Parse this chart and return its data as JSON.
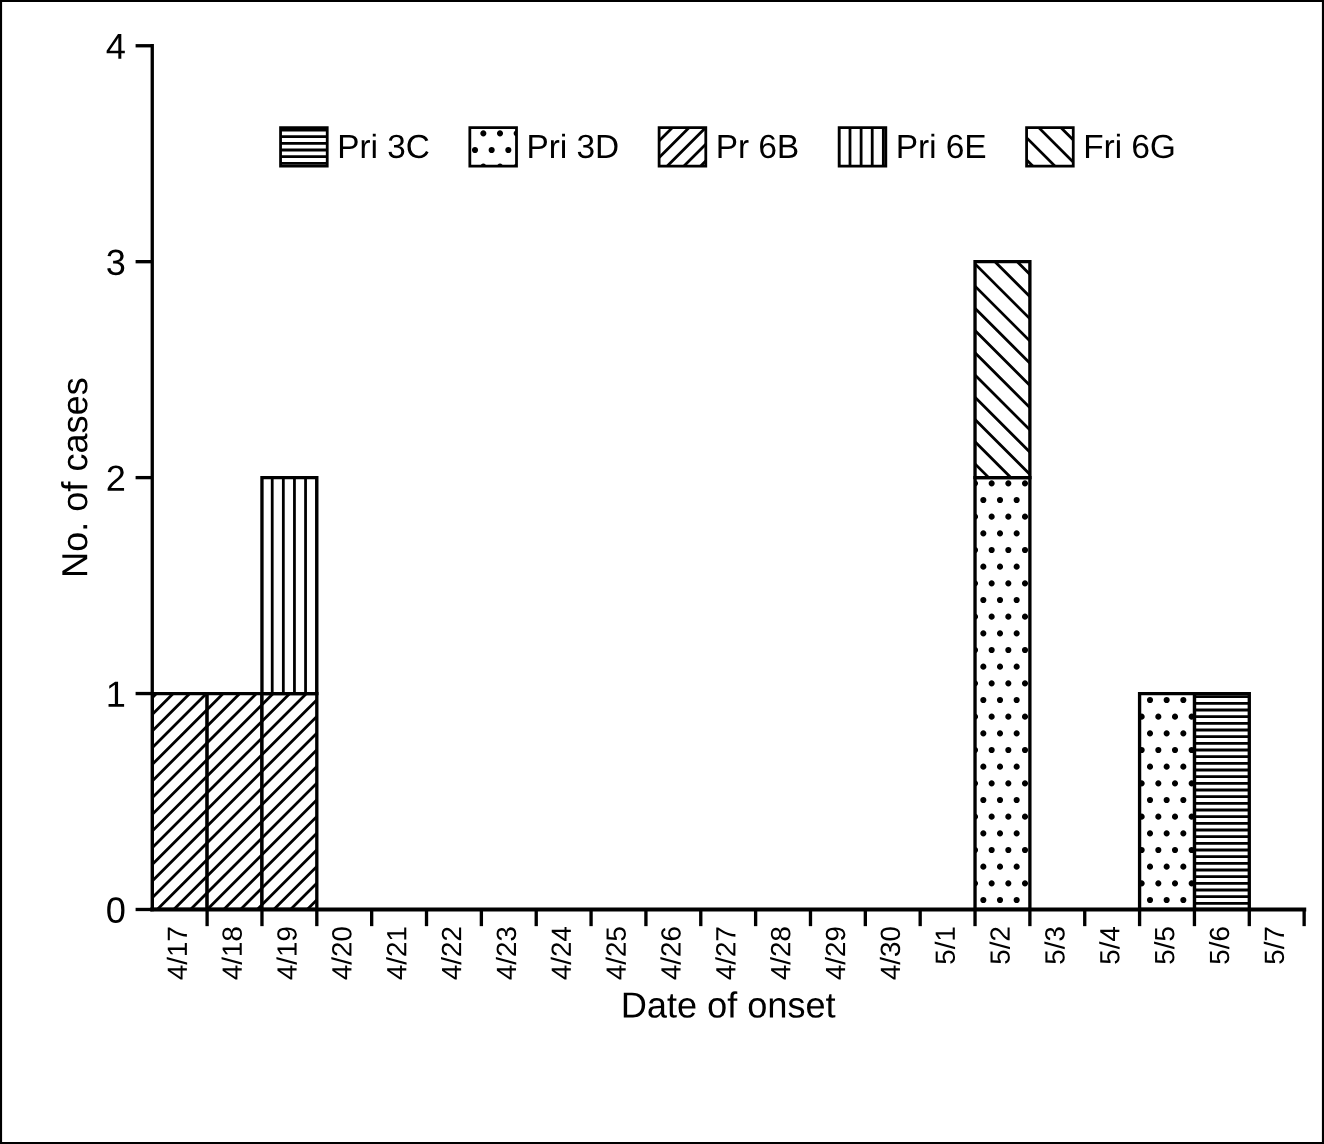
{
  "chart_data": {
    "type": "bar",
    "stacked": true,
    "xlabel": "Date of onset",
    "ylabel": "No. of cases",
    "categories": [
      "4/17",
      "4/18",
      "4/19",
      "4/20",
      "4/21",
      "4/22",
      "4/23",
      "4/24",
      "4/25",
      "4/26",
      "4/27",
      "4/28",
      "4/29",
      "4/30",
      "5/1",
      "5/2",
      "5/3",
      "5/4",
      "5/5",
      "5/6",
      "5/7"
    ],
    "series": [
      {
        "name": "Pri 3C",
        "color": "#000000",
        "values": [
          0,
          0,
          0,
          0,
          0,
          0,
          0,
          0,
          0,
          0,
          0,
          0,
          0,
          0,
          0,
          0,
          0,
          0,
          0,
          1,
          0
        ]
      },
      {
        "name": "Pri 3D",
        "color": "#000000",
        "values": [
          0,
          0,
          0,
          0,
          0,
          0,
          0,
          0,
          0,
          0,
          0,
          0,
          0,
          0,
          0,
          2,
          0,
          0,
          1,
          0,
          0
        ]
      },
      {
        "name": "Pr 6B",
        "color": "#000000",
        "values": [
          1,
          1,
          1,
          0,
          0,
          0,
          0,
          0,
          0,
          0,
          0,
          0,
          0,
          0,
          0,
          0,
          0,
          0,
          0,
          0,
          0
        ]
      },
      {
        "name": "Pri 6E",
        "color": "#000000",
        "values": [
          0,
          0,
          1,
          0,
          0,
          0,
          0,
          0,
          0,
          0,
          0,
          0,
          0,
          0,
          0,
          0,
          0,
          0,
          0,
          0,
          0
        ]
      },
      {
        "name": "Fri 6G",
        "color": "#000000",
        "values": [
          0,
          0,
          0,
          0,
          0,
          0,
          0,
          0,
          0,
          0,
          0,
          0,
          0,
          0,
          0,
          1,
          0,
          0,
          0,
          0,
          0
        ]
      }
    ],
    "ylim": [
      0,
      4
    ],
    "yticks": [
      0,
      1,
      2,
      3,
      4
    ],
    "grid": false,
    "legend": "top"
  }
}
